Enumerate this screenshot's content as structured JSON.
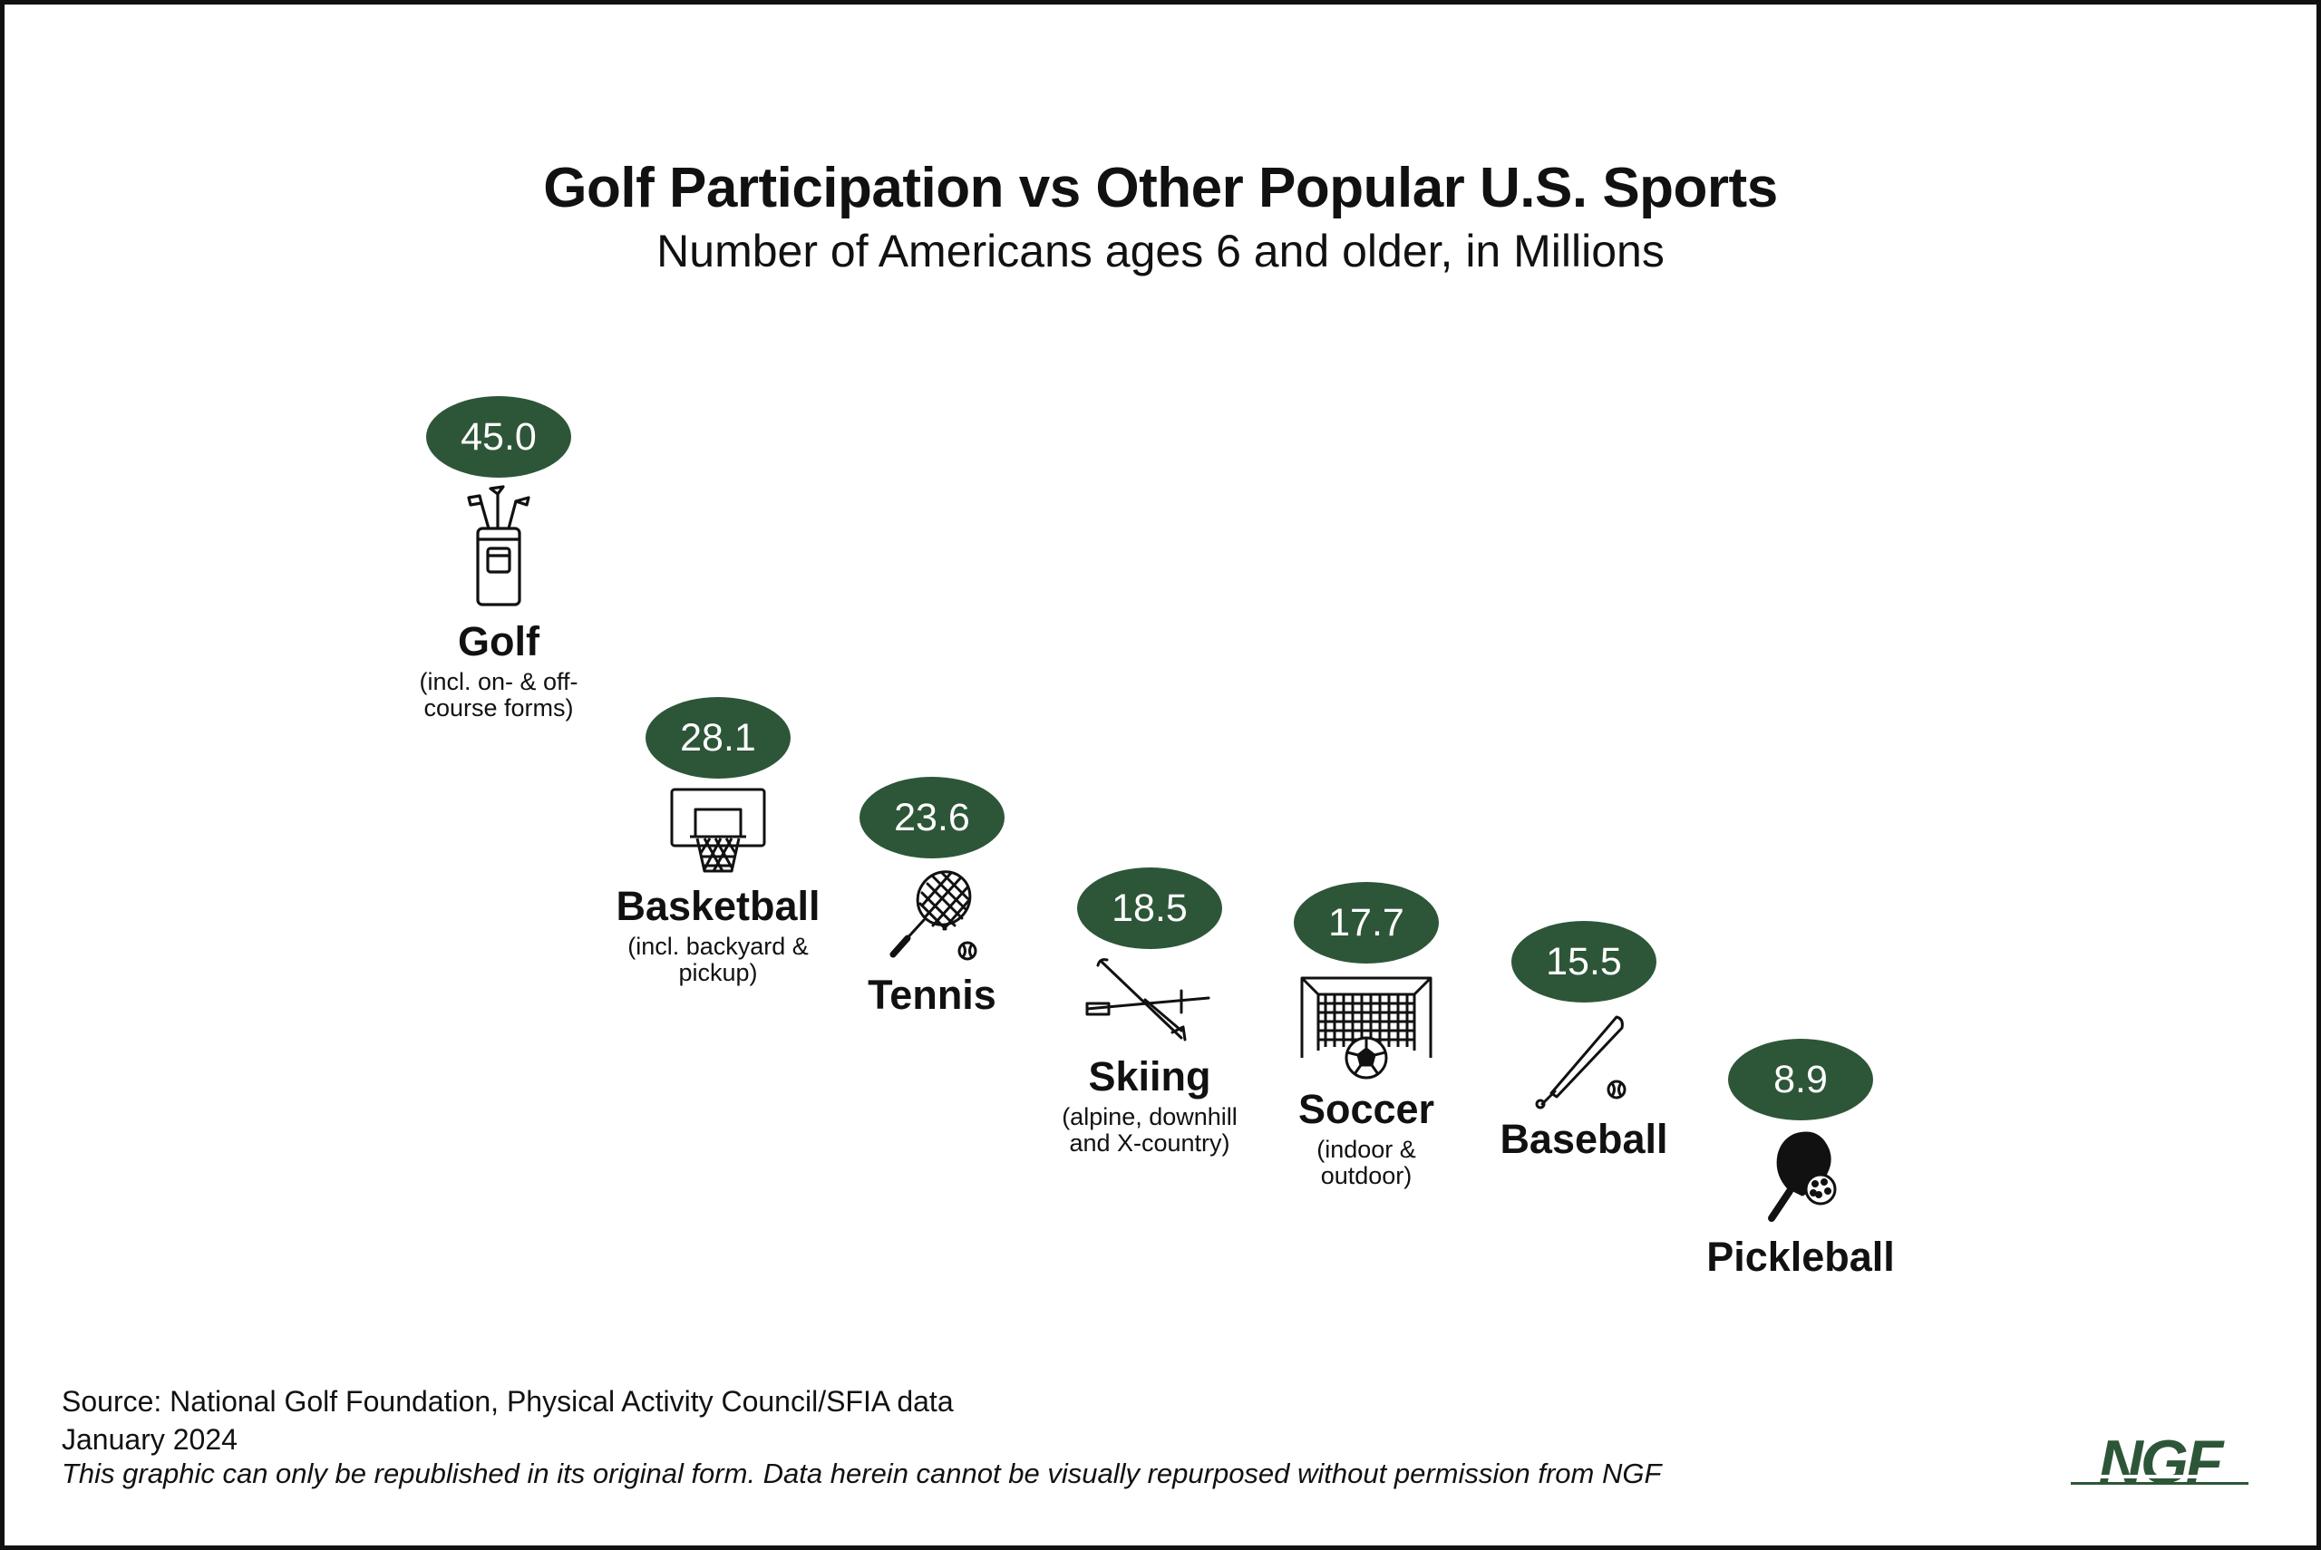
{
  "title": "Golf Participation vs Other Popular U.S. Sports",
  "subtitle": "Number of Americans ages 6 and older, in Millions",
  "accent_color": "#2d5638",
  "chart_data": {
    "type": "table",
    "title": "Golf Participation vs Other Popular U.S. Sports",
    "subtitle": "Number of Americans ages 6 and older, in Millions",
    "categories": [
      "Golf",
      "Basketball",
      "Tennis",
      "Skiing",
      "Soccer",
      "Baseball",
      "Pickleball"
    ],
    "values": [
      45.0,
      28.1,
      23.6,
      18.5,
      17.7,
      15.5,
      8.9
    ],
    "value_labels": [
      "45.0",
      "28.1",
      "23.6",
      "18.5",
      "17.7",
      "15.5",
      "8.9"
    ],
    "notes": [
      "(incl. on- & off-course forms)",
      "(incl. backyard & pickup)",
      "",
      "(alpine, downhill and X-country)",
      "(indoor & outdoor)",
      "",
      ""
    ],
    "icons": [
      "golf-bag-icon",
      "basketball-hoop-icon",
      "tennis-racket-icon",
      "ski-icon",
      "soccer-goal-icon",
      "baseball-bat-icon",
      "pickleball-paddle-icon"
    ]
  },
  "footer": {
    "source": "Source: National Golf Foundation, Physical Activity Council/SFIA data",
    "date": "January 2024",
    "disclaimer": "This graphic can only be republished in its original form. Data herein cannot be visually repurposed without permission from NGF"
  },
  "logo_text": "NGF"
}
